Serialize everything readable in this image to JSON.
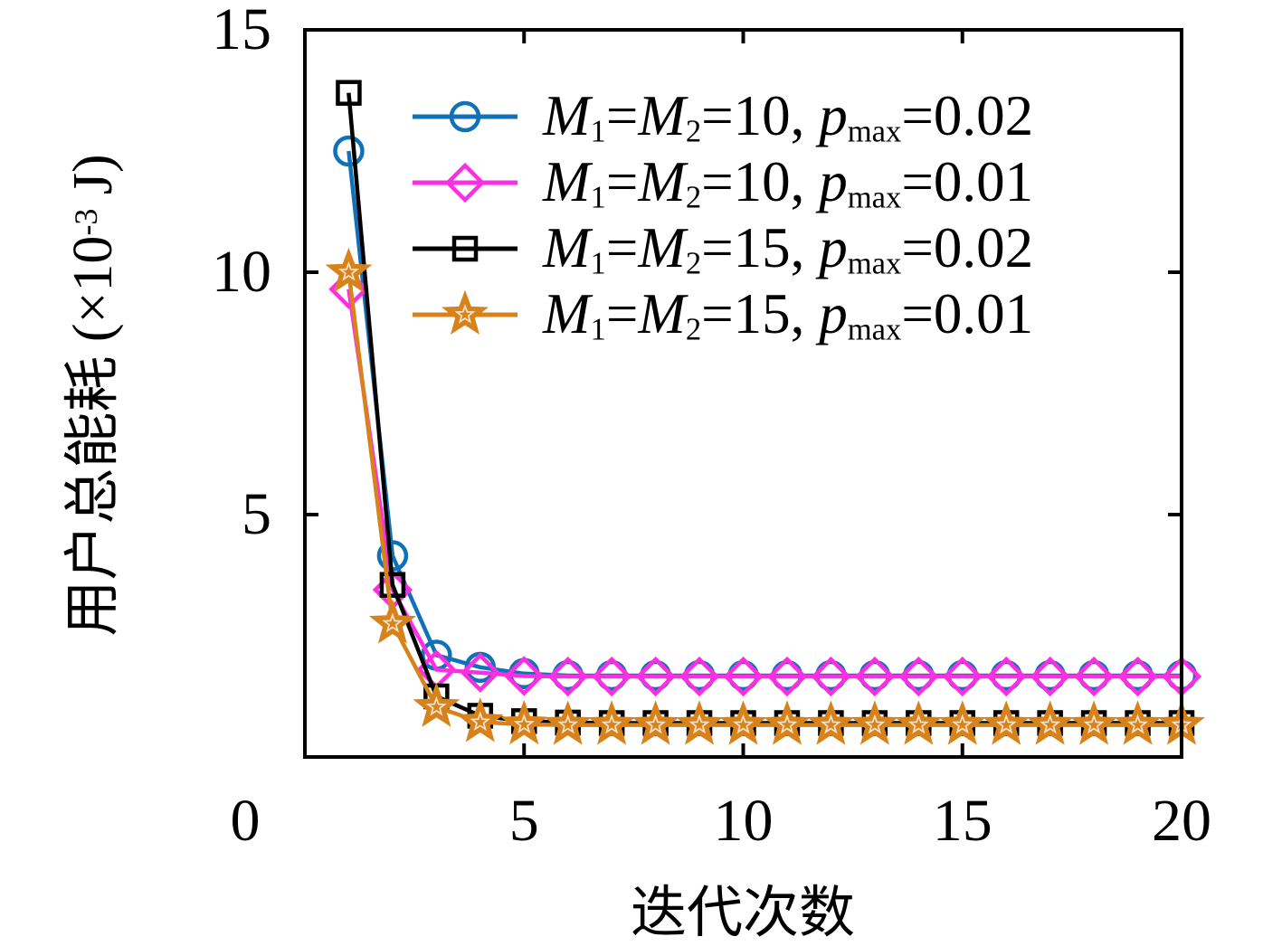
{
  "chart_data": {
    "type": "line",
    "title": "",
    "xlabel": "迭代次数",
    "ylabel": "用户总能耗 (×10^-3 J)",
    "xlim": [
      0,
      20
    ],
    "ylim": [
      0,
      15
    ],
    "xticks": [
      0,
      5,
      10,
      15,
      20
    ],
    "yticks": [
      5,
      10,
      15
    ],
    "grid": false,
    "legend_position": "inside-top-left",
    "frame_color": "#000000",
    "x": [
      1,
      2,
      3,
      4,
      5,
      6,
      7,
      8,
      9,
      10,
      11,
      12,
      13,
      14,
      15,
      16,
      17,
      18,
      19,
      20
    ],
    "series": [
      {
        "name": "M_1=M_2=10, p_max=0.02",
        "color": "#0f72b9",
        "marker": "circle",
        "values": [
          12.5,
          4.15,
          2.1,
          1.85,
          1.72,
          1.68,
          1.68,
          1.68,
          1.68,
          1.68,
          1.68,
          1.68,
          1.68,
          1.68,
          1.68,
          1.68,
          1.68,
          1.68,
          1.68,
          1.68
        ]
      },
      {
        "name": "M_1=M_2=10, p_max=0.01",
        "color": "#fb2fe2",
        "marker": "diamond",
        "values": [
          9.65,
          3.45,
          1.8,
          1.74,
          1.67,
          1.66,
          1.66,
          1.66,
          1.66,
          1.66,
          1.66,
          1.66,
          1.66,
          1.66,
          1.66,
          1.66,
          1.66,
          1.66,
          1.66,
          1.66
        ]
      },
      {
        "name": "M_1=M_2=15, p_max=0.02",
        "color": "#000000",
        "marker": "square",
        "values": [
          13.7,
          3.55,
          1.25,
          0.85,
          0.74,
          0.71,
          0.7,
          0.7,
          0.7,
          0.7,
          0.7,
          0.7,
          0.7,
          0.7,
          0.7,
          0.7,
          0.7,
          0.7,
          0.7,
          0.7
        ]
      },
      {
        "name": "M_1=M_2=15, p_max=0.01",
        "color": "#d8821b",
        "marker": "star",
        "values": [
          10.0,
          2.75,
          1.03,
          0.72,
          0.67,
          0.66,
          0.66,
          0.66,
          0.66,
          0.66,
          0.66,
          0.66,
          0.66,
          0.66,
          0.66,
          0.66,
          0.66,
          0.66,
          0.66,
          0.66
        ]
      }
    ]
  }
}
